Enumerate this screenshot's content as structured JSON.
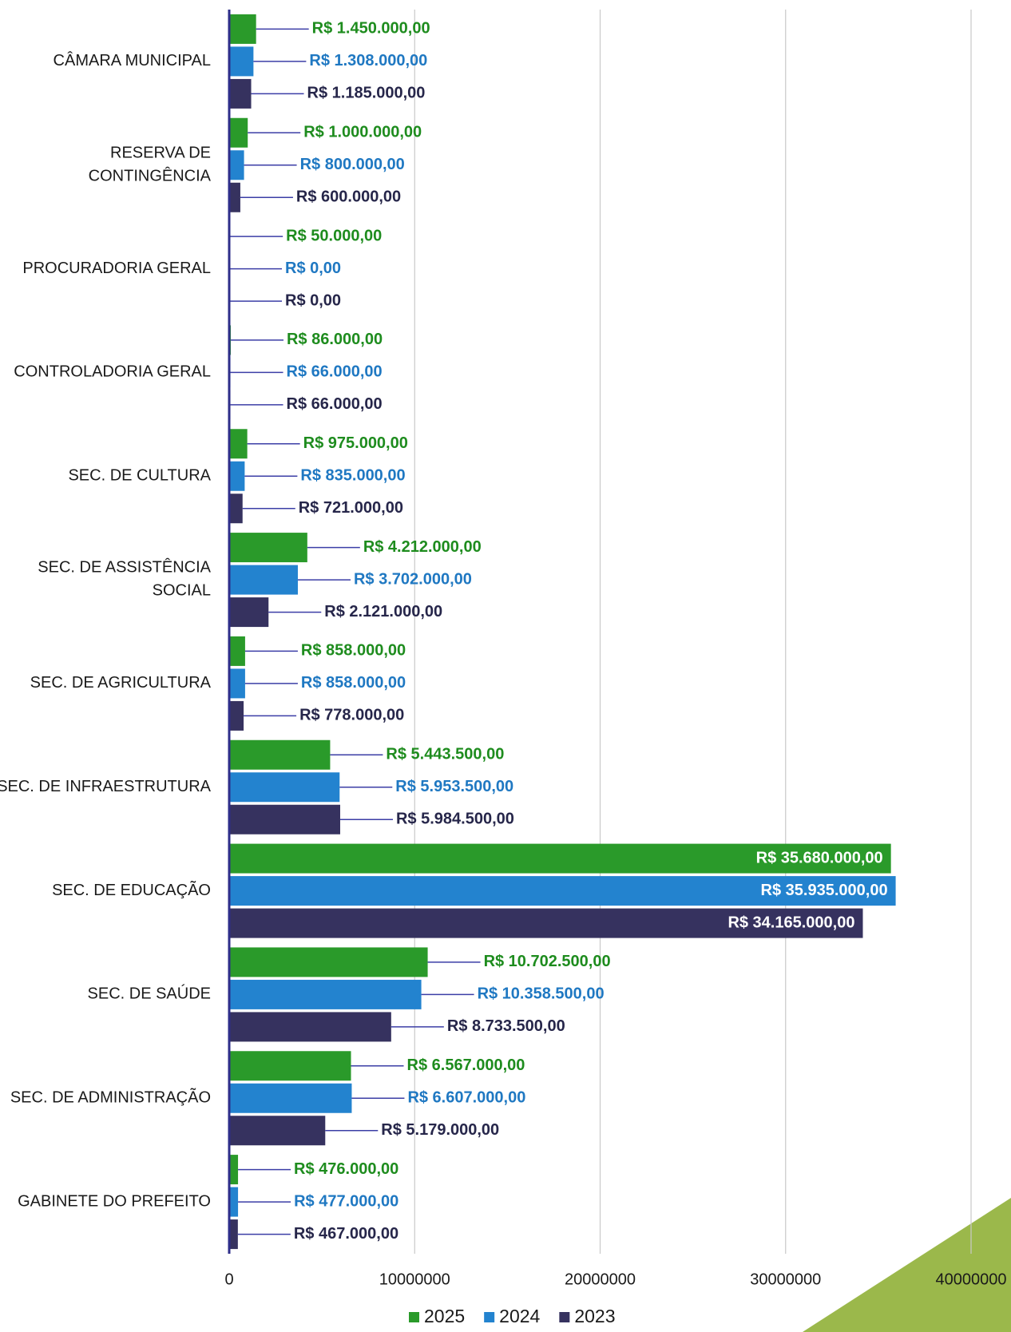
{
  "chart_data": {
    "type": "bar",
    "orientation": "horizontal",
    "categories": [
      "CÂMARA MUNICIPAL",
      "RESERVA DE\nCONTINGÊNCIA",
      "PROCURADORIA GERAL",
      "CONTROLADORIA GERAL",
      "SEC. DE CULTURA",
      "SEC. DE ASSISTÊNCIA\nSOCIAL",
      "SEC. DE AGRICULTURA",
      "SEC. DE INFRAESTRUTURA",
      "SEC. DE EDUCAÇÃO",
      "SEC. DE SAÚDE",
      "SEC. DE ADMINISTRAÇÃO",
      "GABINETE DO PREFEITO"
    ],
    "series": [
      {
        "name": "2025",
        "color": "#2a9a2a",
        "label_color": "#1e8c1e",
        "values": [
          1450000,
          1000000,
          50000,
          86000,
          975000,
          4212000,
          858000,
          5443500,
          35680000,
          10702500,
          6567000,
          476000
        ],
        "value_labels": [
          "R$ 1.450.000,00",
          "R$ 1.000.000,00",
          "R$ 50.000,00",
          "R$ 86.000,00",
          "R$ 975.000,00",
          "R$ 4.212.000,00",
          "R$ 858.000,00",
          "R$ 5.443.500,00",
          "R$ 35.680.000,00",
          "R$ 10.702.500,00",
          "R$ 6.567.000,00",
          "R$ 476.000,00"
        ]
      },
      {
        "name": "2024",
        "color": "#2383cf",
        "label_color": "#1f78c2",
        "values": [
          1308000,
          800000,
          0,
          66000,
          835000,
          3702000,
          858000,
          5953500,
          35935000,
          10358500,
          6607000,
          477000
        ],
        "value_labels": [
          "R$ 1.308.000,00",
          "R$ 800.000,00",
          "R$ 0,00",
          "R$ 66.000,00",
          "R$ 835.000,00",
          "R$ 3.702.000,00",
          "R$ 858.000,00",
          "R$ 5.953.500,00",
          "R$ 35.935.000,00",
          "R$ 10.358.500,00",
          "R$ 6.607.000,00",
          "R$ 477.000,00"
        ]
      },
      {
        "name": "2023",
        "color": "#36325f",
        "label_color": "#26264a",
        "values": [
          1185000,
          600000,
          0,
          66000,
          721000,
          2121000,
          778000,
          5984500,
          34165000,
          8733500,
          5179000,
          467000
        ],
        "value_labels": [
          "R$ 1.185.000,00",
          "R$ 600.000,00",
          "R$ 0,00",
          "R$ 66.000,00",
          "R$ 721.000,00",
          "R$ 2.121.000,00",
          "R$ 778.000,00",
          "R$ 5.984.500,00",
          "R$ 34.165.000,00",
          "R$ 8.733.500,00",
          "R$ 5.179.000,00",
          "R$ 467.000,00"
        ]
      }
    ],
    "xlim": [
      0,
      40000000
    ],
    "xticks": [
      0,
      10000000,
      20000000,
      30000000,
      40000000
    ],
    "grid": true,
    "legend": "bottom"
  }
}
